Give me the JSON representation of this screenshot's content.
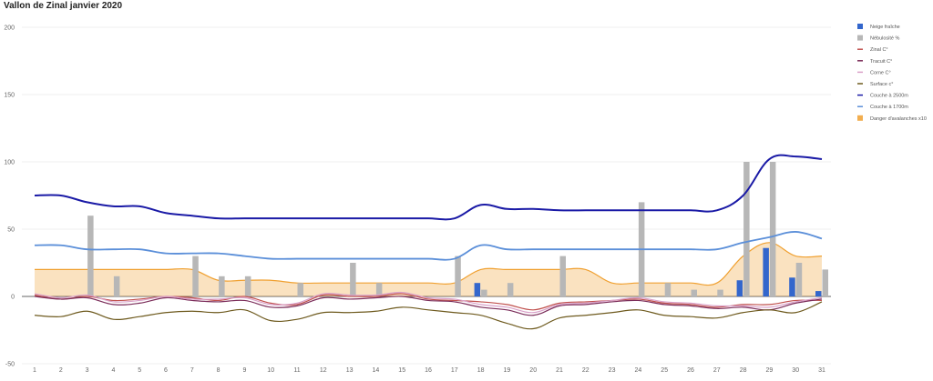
{
  "chart_data": {
    "type": "combo",
    "title": "Vallon de Zinal janvier 2020",
    "xlabel": "",
    "ylabel": "",
    "x": [
      1,
      2,
      3,
      4,
      5,
      6,
      7,
      8,
      9,
      10,
      11,
      12,
      13,
      14,
      15,
      16,
      17,
      18,
      19,
      20,
      21,
      22,
      23,
      24,
      25,
      26,
      27,
      28,
      29,
      30,
      31
    ],
    "ylim": [
      -50,
      200
    ],
    "yticks": [
      -50,
      0,
      50,
      100,
      150,
      200
    ],
    "grid": true,
    "legend_position": "right",
    "series": [
      {
        "name": "Neige fraîche",
        "kind": "bar",
        "color": "#3366cc",
        "values": [
          0,
          0,
          0,
          0,
          0,
          0,
          0,
          0,
          0,
          0,
          0,
          0,
          0,
          0,
          0,
          0,
          0,
          10,
          0,
          0,
          0,
          0,
          0,
          0,
          0,
          0,
          0,
          12,
          36,
          14,
          4
        ]
      },
      {
        "name": "Nébulosité %",
        "kind": "bar",
        "color": "#b7b7b7",
        "values": [
          0,
          0,
          60,
          15,
          0,
          0,
          30,
          15,
          15,
          0,
          10,
          0,
          25,
          10,
          0,
          0,
          30,
          5,
          10,
          0,
          30,
          0,
          0,
          70,
          10,
          5,
          5,
          100,
          100,
          25,
          20
        ]
      },
      {
        "name": "Zinal C°",
        "kind": "line",
        "color": "#c0504d",
        "values": [
          1,
          -2,
          0,
          -3,
          -2,
          0,
          -1,
          -3,
          0,
          -5,
          -6,
          1,
          0,
          0,
          2,
          -2,
          -3,
          -4,
          -6,
          -10,
          -5,
          -4,
          -3,
          -2,
          -5,
          -6,
          -8,
          -6,
          -6,
          -3,
          -3
        ]
      },
      {
        "name": "Tracuit C°",
        "kind": "line",
        "color": "#7b2d5a",
        "values": [
          0,
          -2,
          -1,
          -6,
          -5,
          -1,
          -3,
          -4,
          -3,
          -8,
          -7,
          -1,
          -2,
          -1,
          0,
          -3,
          -4,
          -8,
          -10,
          -14,
          -7,
          -6,
          -4,
          -3,
          -6,
          -7,
          -9,
          -8,
          -10,
          -5,
          -2
        ]
      },
      {
        "name": "Corne C°",
        "kind": "line",
        "color": "#d9a0c8",
        "values": [
          2,
          -1,
          1,
          -4,
          -3,
          0,
          -2,
          -2,
          -1,
          -6,
          -5,
          2,
          1,
          1,
          3,
          -1,
          -2,
          -6,
          -8,
          -12,
          -6,
          -5,
          -3,
          -1,
          -4,
          -5,
          -7,
          -7,
          -8,
          -4,
          -1
        ]
      },
      {
        "name": "Surface c°",
        "kind": "line",
        "color": "#6e5a1e",
        "values": [
          -14,
          -15,
          -11,
          -17,
          -15,
          -12,
          -11,
          -12,
          -10,
          -18,
          -17,
          -12,
          -12,
          -11,
          -8,
          -10,
          -12,
          -14,
          -20,
          -24,
          -16,
          -14,
          -12,
          -10,
          -14,
          -15,
          -16,
          -12,
          -10,
          -12,
          -4
        ]
      },
      {
        "name": "Couche à 2500m",
        "kind": "line",
        "color": "#1a1aa6",
        "values": [
          75,
          75,
          70,
          67,
          67,
          62,
          60,
          58,
          58,
          58,
          58,
          58,
          58,
          58,
          58,
          58,
          58,
          68,
          65,
          65,
          64,
          64,
          64,
          64,
          64,
          64,
          64,
          75,
          102,
          104,
          102
        ]
      },
      {
        "name": "Couche à 1700m",
        "kind": "line",
        "color": "#5b8fd9",
        "values": [
          38,
          38,
          35,
          35,
          35,
          32,
          32,
          32,
          30,
          28,
          28,
          28,
          28,
          28,
          28,
          28,
          28,
          38,
          35,
          35,
          35,
          35,
          35,
          35,
          35,
          35,
          35,
          40,
          44,
          48,
          43
        ]
      },
      {
        "name": "Danger d'avalanches x10",
        "kind": "area",
        "color": "#f0a030",
        "values": [
          20,
          20,
          20,
          20,
          20,
          20,
          20,
          12,
          12,
          12,
          10,
          10,
          10,
          10,
          10,
          10,
          10,
          20,
          20,
          20,
          20,
          20,
          10,
          10,
          10,
          10,
          10,
          30,
          40,
          30,
          30
        ]
      }
    ]
  }
}
